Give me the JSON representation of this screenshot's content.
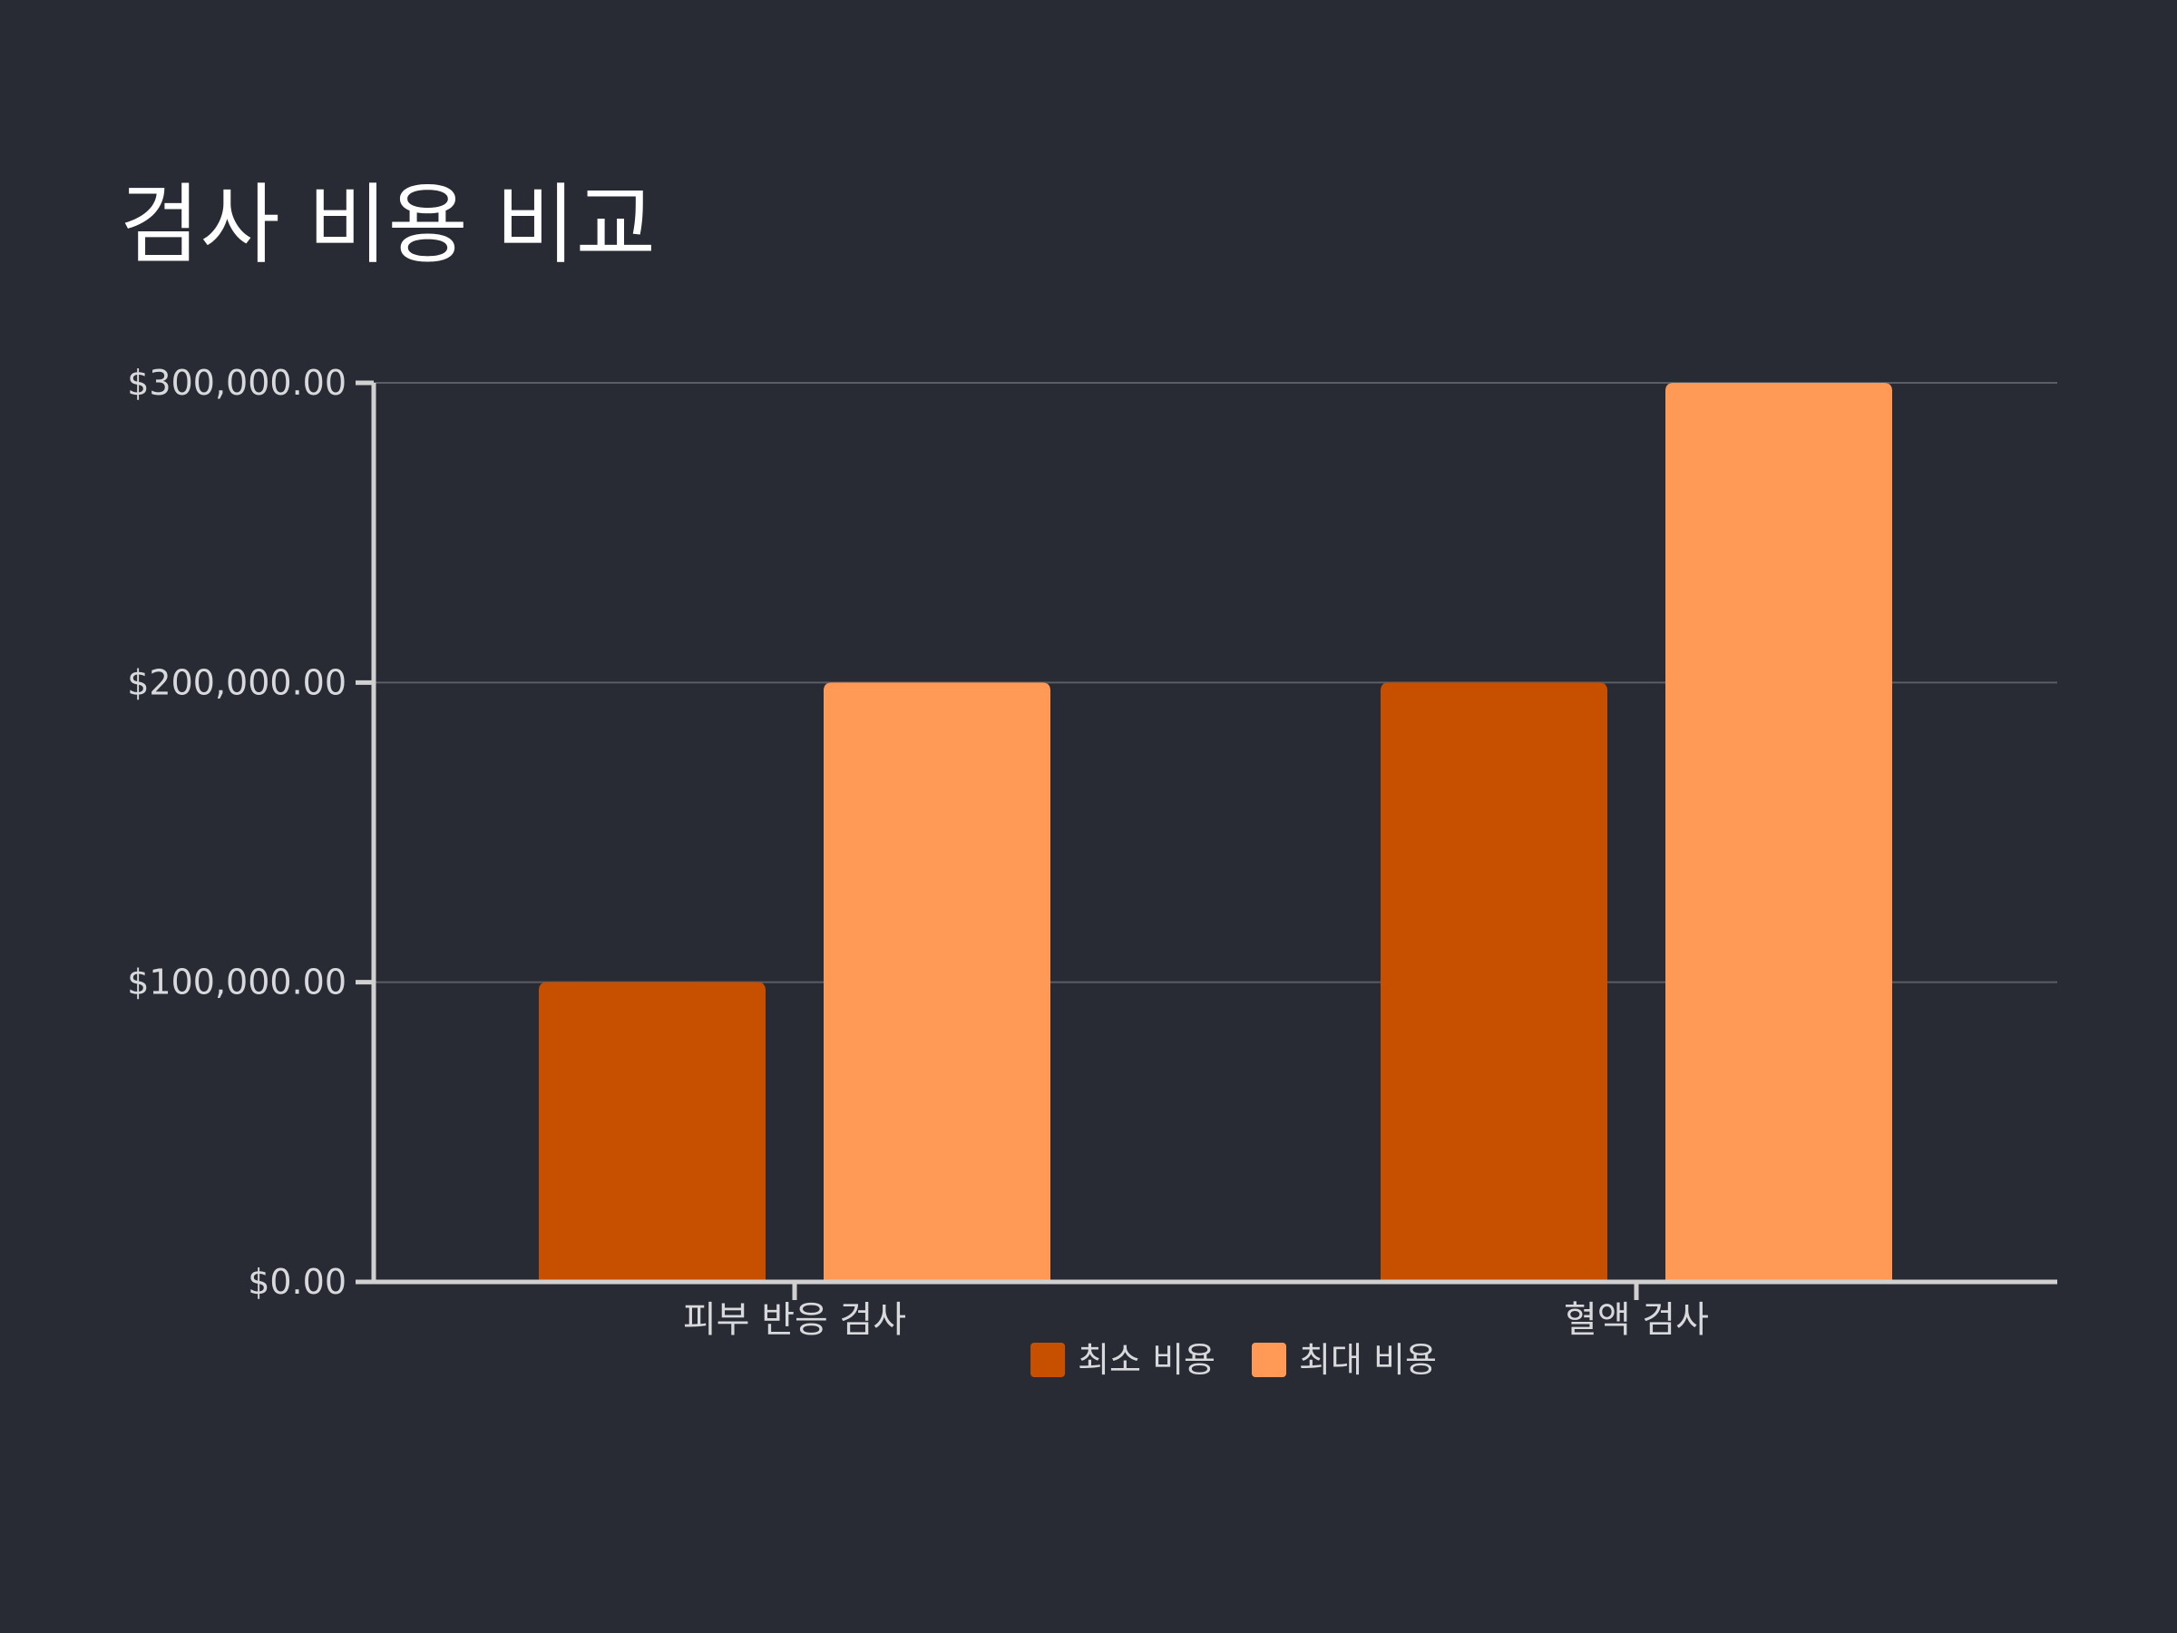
{
  "chart_data": {
    "type": "bar",
    "title": "검사 비용 비교",
    "categories": [
      "피부 반응 검사",
      "혈액 검사"
    ],
    "series": [
      {
        "name": "최소 비용",
        "values": [
          100000,
          200000
        ],
        "color": "#c75000"
      },
      {
        "name": "최대 비용",
        "values": [
          200000,
          300000
        ],
        "color": "#ff9955"
      }
    ],
    "ylim": [
      0,
      300000
    ],
    "yticks": [
      0,
      100000,
      200000,
      300000
    ],
    "ytick_labels": [
      "$0.00",
      "$100,000.00",
      "$200,000.00",
      "$300,000.00"
    ],
    "xlabel": "",
    "ylabel": "",
    "grid": true,
    "legend_position": "bottom-center"
  },
  "colors": {
    "background": "#282b33",
    "axis": "#d0d0d0",
    "grid": "#5a5d63",
    "text": "#d8d9dd"
  }
}
